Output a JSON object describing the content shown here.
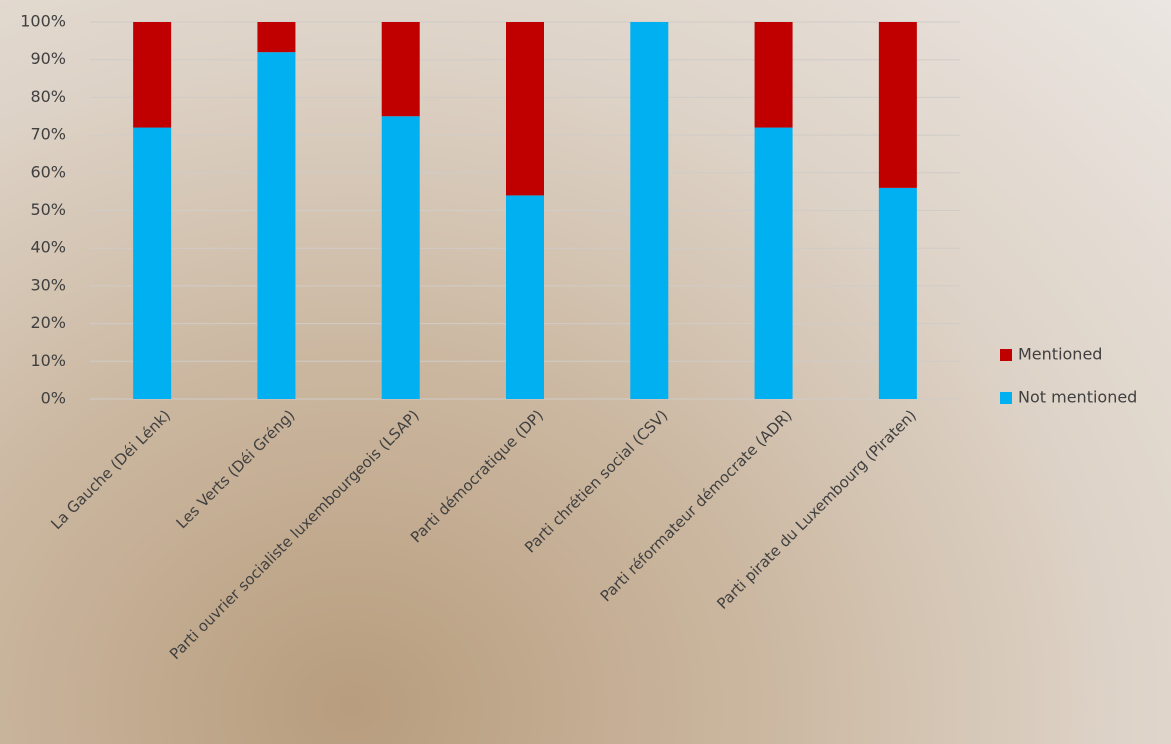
{
  "chart_data": {
    "type": "stacked-bar",
    "categories": [
      "La Gauche (Déi Lénk)",
      "Les Verts (Déi Gréng)",
      "Parti ouvrier socialiste luxembourgeois (LSAP)",
      "Parti démocratique (DP)",
      "Parti chrétien social (CSV)",
      "Parti réformateur démocrate (ADR)",
      "Parti pirate du Luxembourg (Piraten)"
    ],
    "series": [
      {
        "name": "Not mentioned",
        "color": "#00b0f0",
        "values": [
          72,
          92,
          75,
          54,
          100,
          72,
          56
        ]
      },
      {
        "name": "Mentioned",
        "color": "#c00000",
        "values": [
          28,
          8,
          25,
          46,
          0,
          28,
          44
        ]
      }
    ],
    "ylim": [
      0,
      100
    ],
    "yticks": [
      {
        "value": 0,
        "label": "0%"
      },
      {
        "value": 10,
        "label": "10%"
      },
      {
        "value": 20,
        "label": "20%"
      },
      {
        "value": 30,
        "label": "30%"
      },
      {
        "value": 40,
        "label": "40%"
      },
      {
        "value": 50,
        "label": "50%"
      },
      {
        "value": 60,
        "label": "60%"
      },
      {
        "value": 70,
        "label": "70%"
      },
      {
        "value": 80,
        "label": "80%"
      },
      {
        "value": 90,
        "label": "90%"
      },
      {
        "value": 100,
        "label": "100%"
      }
    ],
    "grid": true,
    "legend": "right"
  }
}
